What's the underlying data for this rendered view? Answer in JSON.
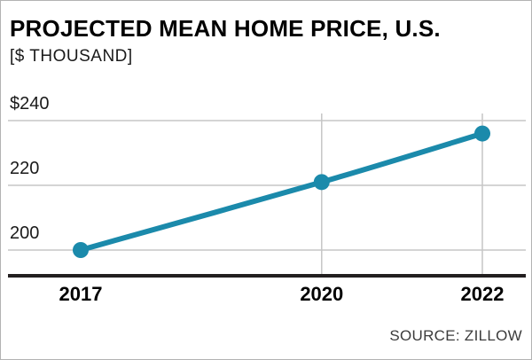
{
  "header": {
    "title": "PROJECTED MEAN HOME PRICE, U.S.",
    "subtitle": "[$ THOUSAND]"
  },
  "source": "SOURCE: ZILLOW",
  "chart_data": {
    "type": "line",
    "title": "PROJECTED MEAN HOME PRICE, U.S.",
    "ylabel": "$ thousand",
    "xlabel": "",
    "x": [
      2017,
      2020,
      2022
    ],
    "x_labels": [
      "2017",
      "2020",
      "2022"
    ],
    "series": [
      {
        "name": "Projected mean home price",
        "values": [
          200,
          221,
          236
        ]
      }
    ],
    "y_gridlines": [
      {
        "label": "$240",
        "value": 240
      },
      {
        "label": "220",
        "value": 220
      },
      {
        "label": "200",
        "value": 200
      }
    ],
    "ylim": [
      192,
      245
    ],
    "grid": true,
    "legend": "none",
    "line_color": "#1b8aab",
    "grid_color": "#c6c6c6",
    "axis_color": "#231f20"
  }
}
